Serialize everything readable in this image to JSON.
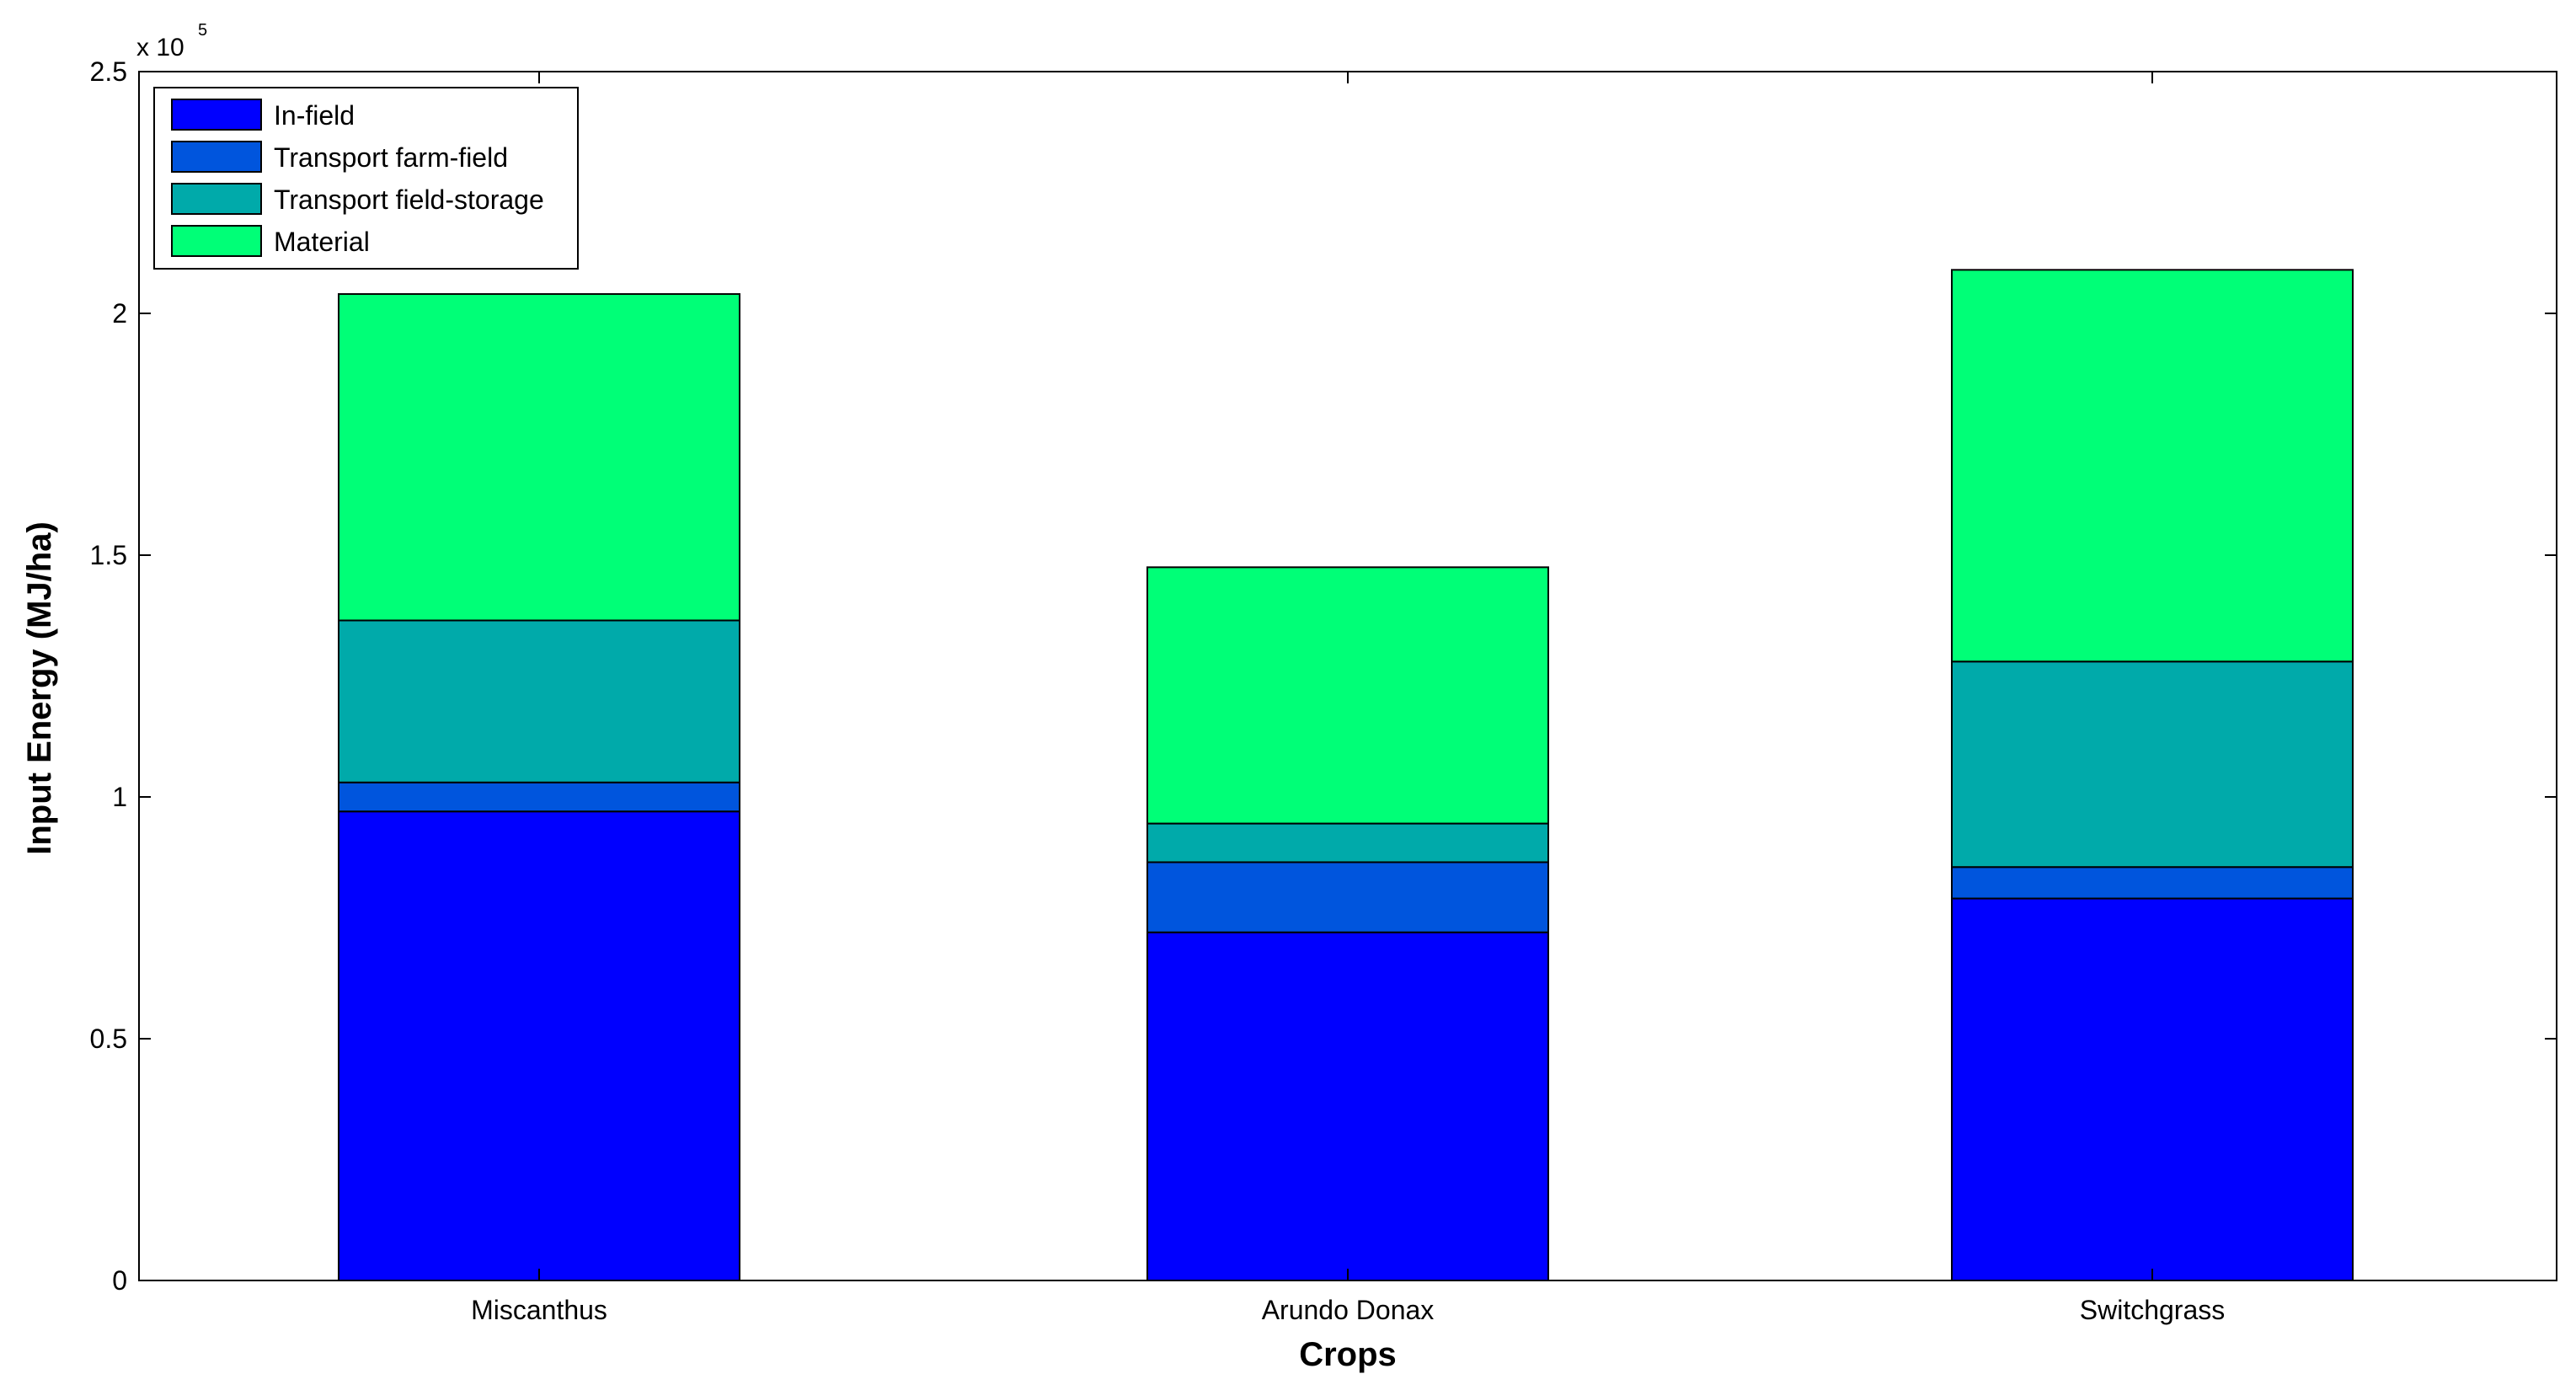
{
  "chart_data": {
    "type": "bar",
    "stacked": true,
    "categories": [
      "Miscanthus",
      "Arundo Donax",
      "Switchgrass"
    ],
    "series": [
      {
        "name": "In-field",
        "color": "#0000FF",
        "values": [
          97000,
          72000,
          79000
        ]
      },
      {
        "name": "Transport farm-field",
        "color": "#0055DD",
        "values": [
          6000,
          14500,
          6500
        ]
      },
      {
        "name": "Transport field-storage",
        "color": "#00AAAA",
        "values": [
          33500,
          8000,
          42500
        ]
      },
      {
        "name": "Material",
        "color": "#00FF77",
        "values": [
          67500,
          53000,
          81000
        ]
      }
    ],
    "xlabel": "Crops",
    "ylabel": "Input Energy (MJ/ha)",
    "ylim": [
      0,
      250000
    ],
    "yticks": [
      0,
      50000,
      100000,
      150000,
      200000,
      250000
    ],
    "ytick_labels": [
      "0",
      "0.5",
      "1",
      "1.5",
      "2",
      "2.5"
    ],
    "y_multiplier_base": "x 10",
    "y_multiplier_exponent": "5",
    "legend_position": "top-left",
    "grid": false
  }
}
